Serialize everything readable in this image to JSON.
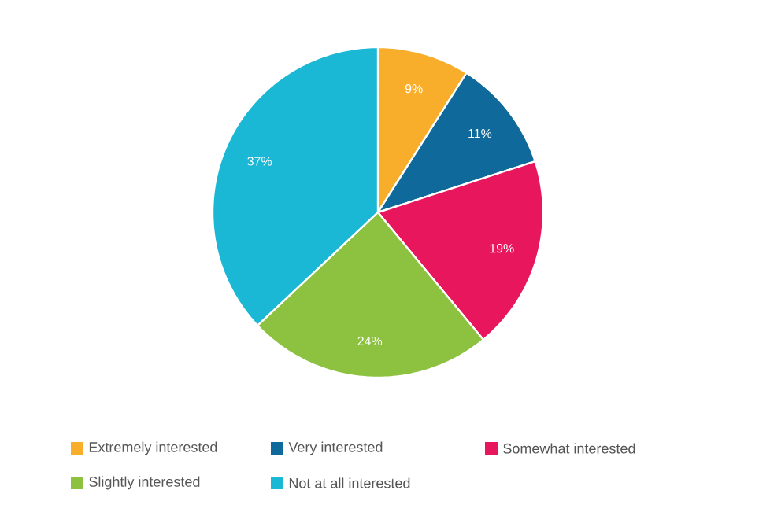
{
  "chart_data": {
    "type": "pie",
    "categories": [
      "Extremely interested",
      "Very interested",
      "Somewhat interested",
      "Slightly interested",
      "Not at all interested"
    ],
    "values": [
      9,
      11,
      19,
      24,
      37
    ],
    "value_labels": [
      "9%",
      "11%",
      "19%",
      "24%",
      "37%"
    ],
    "colors": [
      "#f9ae2b",
      "#0f6a9b",
      "#e8175d",
      "#8cc23f",
      "#1bb8d6"
    ],
    "legend": "bottom"
  }
}
